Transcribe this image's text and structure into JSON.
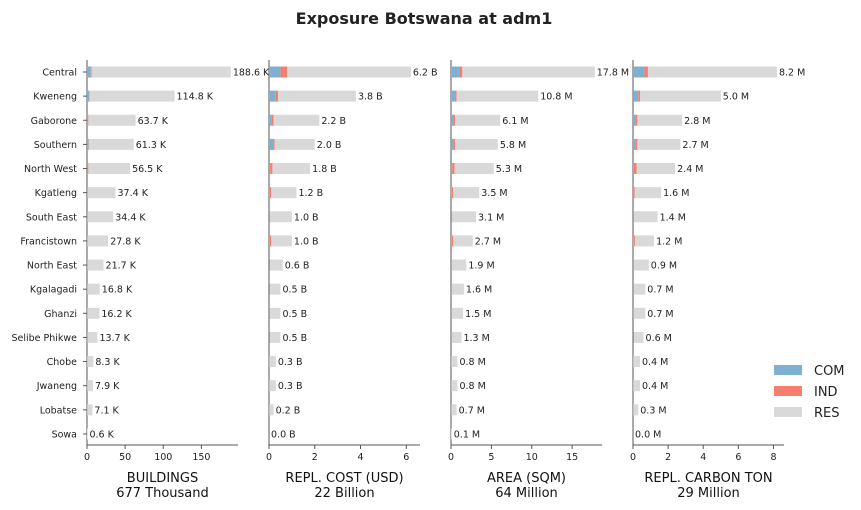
{
  "title": "Exposure Botswana at adm1",
  "colors": {
    "COM": "#7fafd1",
    "IND": "#f47f6f",
    "RES": "#d9d9d9"
  },
  "legend": [
    "COM",
    "IND",
    "RES"
  ],
  "categories": [
    "Central",
    "Kweneng",
    "Gaborone",
    "Southern",
    "North West",
    "Kgatleng",
    "South East",
    "Francistown",
    "North East",
    "Kgalagadi",
    "Ghanzi",
    "Selibe Phikwe",
    "Chobe",
    "Jwaneng",
    "Lobatse",
    "Sowa"
  ],
  "chart_data": [
    {
      "type": "bar",
      "xlabel": "BUILDINGS",
      "xsublabel": "677 Thousand",
      "xlim": [
        0,
        198
      ],
      "ticks": [
        0,
        50,
        100,
        150
      ],
      "tick_labels": [
        "0",
        "50",
        "100",
        "150"
      ],
      "totals": [
        188.6,
        114.8,
        63.7,
        61.3,
        56.5,
        37.4,
        34.4,
        27.8,
        21.7,
        16.8,
        16.2,
        13.7,
        8.3,
        7.9,
        7.1,
        0.6
      ],
      "value_labels": [
        "188.6 K",
        "114.8 K",
        "63.7 K",
        "61.3 K",
        "56.5 K",
        "37.4 K",
        "34.4 K",
        "27.8 K",
        "21.7 K",
        "16.8 K",
        "16.2 K",
        "13.7 K",
        "8.3 K",
        "7.9 K",
        "7.1 K",
        "0.6 K"
      ],
      "series": [
        {
          "name": "COM",
          "values": [
            5.0,
            3.0,
            1.5,
            2.0,
            0.6,
            0.4,
            0.4,
            0.6,
            0.3,
            0.3,
            0.2,
            0.3,
            0.1,
            0.1,
            0.1,
            0.0
          ]
        },
        {
          "name": "IND",
          "values": [
            1.0,
            0.5,
            0.4,
            0.4,
            1.2,
            0.3,
            0.2,
            0.3,
            0.2,
            0.1,
            0.1,
            0.2,
            0.1,
            0.1,
            0.1,
            0.0
          ]
        },
        {
          "name": "RES",
          "values": [
            182.6,
            111.3,
            61.8,
            58.9,
            54.7,
            36.7,
            33.8,
            26.9,
            21.2,
            16.4,
            15.9,
            13.2,
            8.1,
            7.7,
            6.9,
            0.6
          ]
        }
      ]
    },
    {
      "type": "bar",
      "xlabel": "REPL. COST (USD)",
      "xsublabel": "22 Billion",
      "xlim": [
        0,
        6.6
      ],
      "ticks": [
        0,
        2,
        4,
        6
      ],
      "tick_labels": [
        "0",
        "2",
        "4",
        "6"
      ],
      "totals": [
        6.2,
        3.8,
        2.2,
        2.0,
        1.8,
        1.2,
        1.0,
        1.0,
        0.6,
        0.5,
        0.5,
        0.5,
        0.3,
        0.3,
        0.2,
        0.0
      ],
      "value_labels": [
        "6.2 B",
        "3.8 B",
        "2.2 B",
        "2.0 B",
        "1.8 B",
        "1.2 B",
        "1.0 B",
        "1.0 B",
        "0.6 B",
        "0.5 B",
        "0.5 B",
        "0.5 B",
        "0.3 B",
        "0.3 B",
        "0.2 B",
        "0.0 B"
      ],
      "series": [
        {
          "name": "COM",
          "values": [
            0.5,
            0.3,
            0.1,
            0.2,
            0.05,
            0.03,
            0.02,
            0.03,
            0.01,
            0.01,
            0.01,
            0.01,
            0.0,
            0.0,
            0.0,
            0.0
          ]
        },
        {
          "name": "IND",
          "values": [
            0.3,
            0.1,
            0.1,
            0.05,
            0.1,
            0.07,
            0.03,
            0.07,
            0.04,
            0.04,
            0.03,
            0.04,
            0.01,
            0.01,
            0.01,
            0.0
          ]
        },
        {
          "name": "RES",
          "values": [
            5.4,
            3.4,
            2.0,
            1.75,
            1.65,
            1.1,
            0.95,
            0.9,
            0.55,
            0.45,
            0.46,
            0.45,
            0.29,
            0.29,
            0.19,
            0.0
          ]
        }
      ]
    },
    {
      "type": "bar",
      "xlabel": "AREA (SQM)",
      "xsublabel": "64 Million",
      "xlim": [
        0,
        18.7
      ],
      "ticks": [
        0,
        5,
        10,
        15
      ],
      "tick_labels": [
        "0",
        "5",
        "10",
        "15"
      ],
      "totals": [
        17.8,
        10.8,
        6.1,
        5.8,
        5.3,
        3.5,
        3.1,
        2.7,
        1.9,
        1.6,
        1.5,
        1.3,
        0.8,
        0.8,
        0.7,
        0.1
      ],
      "value_labels": [
        "17.8 M",
        "10.8 M",
        "6.1 M",
        "5.8 M",
        "5.3 M",
        "3.5 M",
        "3.1 M",
        "2.7 M",
        "1.9 M",
        "1.6 M",
        "1.5 M",
        "1.3 M",
        "0.8 M",
        "0.8 M",
        "0.7 M",
        "0.1 M"
      ],
      "series": [
        {
          "name": "COM",
          "values": [
            1.0,
            0.5,
            0.3,
            0.3,
            0.15,
            0.1,
            0.05,
            0.1,
            0.03,
            0.03,
            0.03,
            0.03,
            0.01,
            0.01,
            0.01,
            0.0
          ]
        },
        {
          "name": "IND",
          "values": [
            0.4,
            0.2,
            0.2,
            0.2,
            0.3,
            0.15,
            0.1,
            0.15,
            0.07,
            0.07,
            0.07,
            0.07,
            0.02,
            0.02,
            0.02,
            0.0
          ]
        },
        {
          "name": "RES",
          "values": [
            16.4,
            10.1,
            5.6,
            5.3,
            4.85,
            3.25,
            2.95,
            2.45,
            1.8,
            1.5,
            1.4,
            1.2,
            0.77,
            0.77,
            0.67,
            0.1
          ]
        }
      ]
    },
    {
      "type": "bar",
      "xlabel": "REPL. CARBON TON",
      "xsublabel": "29 Million",
      "xlim": [
        0,
        8.6
      ],
      "ticks": [
        0,
        2,
        4,
        6,
        8
      ],
      "tick_labels": [
        "0",
        "2",
        "4",
        "6",
        "8"
      ],
      "totals": [
        8.2,
        5.0,
        2.8,
        2.7,
        2.4,
        1.6,
        1.4,
        1.2,
        0.9,
        0.7,
        0.7,
        0.6,
        0.4,
        0.4,
        0.3,
        0.0
      ],
      "value_labels": [
        "8.2 M",
        "5.0 M",
        "2.8 M",
        "2.7 M",
        "2.4 M",
        "1.6 M",
        "1.4 M",
        "1.2 M",
        "0.9 M",
        "0.7 M",
        "0.7 M",
        "0.6 M",
        "0.4 M",
        "0.4 M",
        "0.3 M",
        "0.0 M"
      ],
      "series": [
        {
          "name": "COM",
          "values": [
            0.65,
            0.3,
            0.15,
            0.15,
            0.05,
            0.03,
            0.03,
            0.04,
            0.02,
            0.02,
            0.01,
            0.02,
            0.0,
            0.0,
            0.0,
            0.0
          ]
        },
        {
          "name": "IND",
          "values": [
            0.2,
            0.1,
            0.1,
            0.1,
            0.15,
            0.07,
            0.04,
            0.07,
            0.03,
            0.03,
            0.03,
            0.04,
            0.01,
            0.01,
            0.01,
            0.0
          ]
        },
        {
          "name": "RES",
          "values": [
            7.35,
            4.6,
            2.55,
            2.45,
            2.2,
            1.5,
            1.33,
            1.09,
            0.85,
            0.65,
            0.66,
            0.54,
            0.39,
            0.39,
            0.29,
            0.0
          ]
        }
      ]
    }
  ]
}
